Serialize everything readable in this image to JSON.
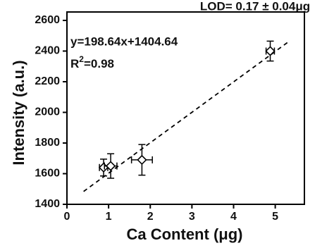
{
  "chart_data": {
    "type": "scatter",
    "x_label": "Ca Content (μg)",
    "y_label": "Intensity (a.u.)",
    "annotations": {
      "equation": "y=198.64x+1404.64",
      "r2_base": "R",
      "r2_sup": "2",
      "r2_value": "=0.98",
      "lod": "LOD= 0.17 ± 0.04μg"
    },
    "series": [
      {
        "x": [
          0.88,
          1.05,
          1.8,
          4.88
        ],
        "y": [
          1640,
          1650,
          1690,
          2400
        ],
        "xerr": [
          0.1,
          0.15,
          0.25,
          0.1
        ],
        "yerr": [
          55,
          80,
          100,
          65
        ],
        "color": "#000000"
      }
    ],
    "fit": {
      "x": [
        0.4,
        5.3
      ],
      "y": [
        1484,
        2457
      ]
    },
    "xlim": [
      0,
      5.7
    ],
    "ylim": [
      1400,
      2655
    ],
    "xticks": [
      0,
      1,
      2,
      3,
      4,
      5
    ],
    "yticks": [
      1400,
      1600,
      1800,
      2000,
      2200,
      2400,
      2600
    ]
  }
}
